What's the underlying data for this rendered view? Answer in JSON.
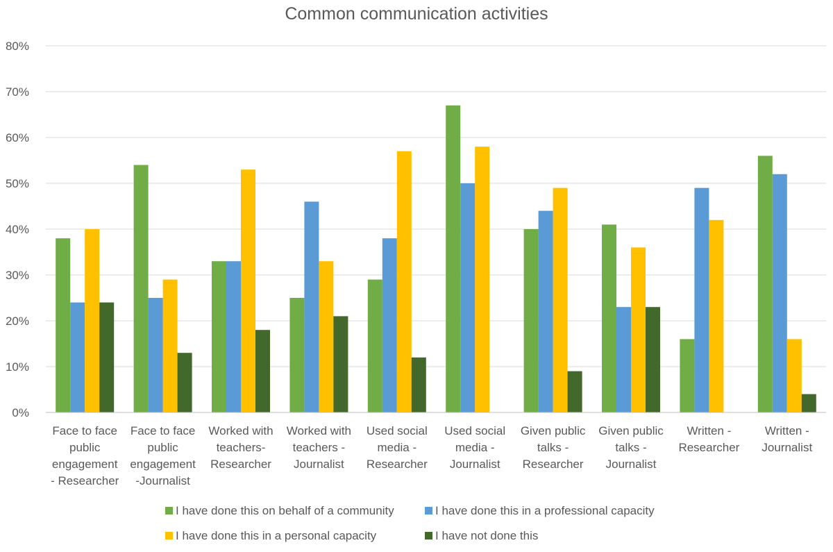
{
  "chart_data": {
    "type": "bar",
    "title": "Common communication activities",
    "xlabel": "",
    "ylabel": "",
    "ylim": [
      0,
      80
    ],
    "y_tick_step": 10,
    "y_tick_suffix": "%",
    "grid": true,
    "legend_position": "bottom",
    "categories": [
      [
        "Face to face",
        "public",
        "engagement",
        "- Researcher"
      ],
      [
        "Face to face",
        "public",
        "engagement",
        "-Journalist"
      ],
      [
        "Worked with",
        "teachers-",
        "Researcher"
      ],
      [
        "Worked with",
        "teachers -",
        "Journalist"
      ],
      [
        "Used social",
        "media -",
        "Researcher"
      ],
      [
        "Used social",
        "media -",
        "Journalist"
      ],
      [
        "Given public",
        "talks -",
        "Researcher"
      ],
      [
        "Given public",
        "talks -",
        "Journalist"
      ],
      [
        "Written -",
        "Researcher"
      ],
      [
        "Written -",
        "Journalist"
      ]
    ],
    "series": [
      {
        "name": "I have done this on behalf of a community",
        "color": "#70ad47",
        "values": [
          38,
          54,
          33,
          25,
          29,
          67,
          40,
          41,
          16,
          56
        ]
      },
      {
        "name": "I have done this in a professional capacity",
        "color": "#5b9bd5",
        "values": [
          24,
          25,
          33,
          46,
          38,
          50,
          44,
          23,
          49,
          52
        ]
      },
      {
        "name": "I have done this in a personal capacity",
        "color": "#ffc000",
        "values": [
          40,
          29,
          53,
          33,
          57,
          58,
          49,
          36,
          42,
          16
        ]
      },
      {
        "name": "I have not done this",
        "color": "#43682b",
        "values": [
          24,
          13,
          18,
          21,
          12,
          0,
          9,
          23,
          0,
          4
        ]
      }
    ]
  }
}
